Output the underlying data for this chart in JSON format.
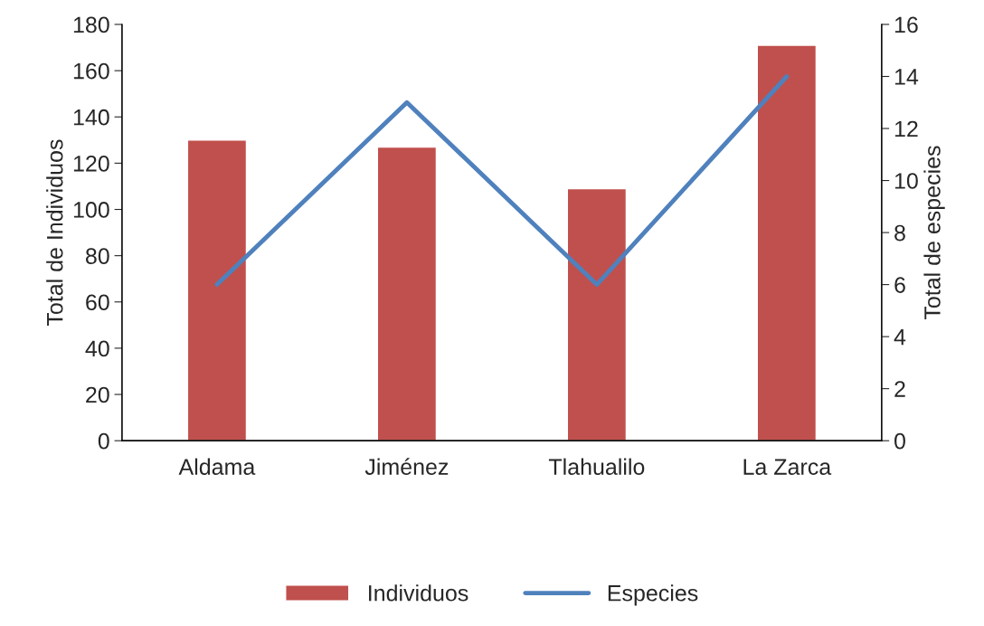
{
  "chart_data": {
    "type": "bar",
    "categories": [
      "Aldama",
      "Jiménez",
      "Tlahualilo",
      "La Zarca"
    ],
    "series": [
      {
        "name": "Individuos",
        "color": "#c0504d",
        "values": [
          130,
          127,
          109,
          171
        ]
      },
      {
        "name": "Especies",
        "type": "line",
        "axis": "y2",
        "color": "#4f81bd",
        "values": [
          6,
          13,
          6,
          14
        ]
      }
    ],
    "ylabel": "Total de Individuos",
    "y2label": "Total de especies",
    "ylim": [
      0,
      180
    ],
    "yticks": [
      0,
      20,
      40,
      60,
      80,
      100,
      120,
      140,
      160,
      180
    ],
    "y2lim": [
      0,
      16
    ],
    "y2ticks": [
      0,
      2,
      4,
      6,
      8,
      10,
      12,
      14,
      16
    ],
    "legend": "bottom",
    "grid": false
  }
}
